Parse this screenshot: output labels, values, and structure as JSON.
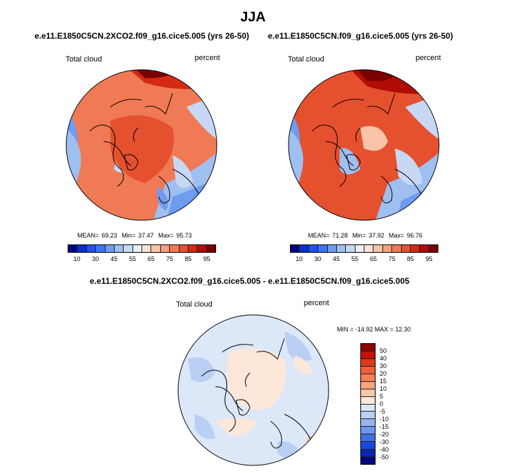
{
  "title": "JJA",
  "variable_label": "Total cloud",
  "units": "percent",
  "maps": [
    {
      "title": "e.e11.E1850C5CN.2XCO2.f09_g16.cice5.005 (yrs 26-50)",
      "mean_label": "MEAN=",
      "mean": "69.23",
      "min_label": "Min=",
      "min": "37.47",
      "max_label": "Max=",
      "max": "95.73"
    },
    {
      "title": "e.e11.E1850C5CN.f09_g16.cice5.005 (yrs 26-50)",
      "mean_label": "MEAN=",
      "mean": "71.28",
      "min_label": "Min=",
      "min": "37.92",
      "max_label": "Max=",
      "max": "96.76"
    }
  ],
  "diff": {
    "title": "e.e11.E1850C5CN.2XCO2.f09_g16.cice5.005 - e.e11.E1850C5CN.f09_g16.cice5.005",
    "minmax": "MIN = -14.92 MAX =  12.30"
  },
  "abs_colorbar": {
    "colors": [
      "#00007f",
      "#0a2ecc",
      "#1c52f0",
      "#3a75f5",
      "#6e9cf2",
      "#9ebff0",
      "#c6d8f4",
      "#e7eff8",
      "#fbe4d6",
      "#f9c4a8",
      "#f6a07e",
      "#f07a55",
      "#e5502f",
      "#d42a14",
      "#b20c05",
      "#7a0000"
    ],
    "ticks": [
      "10",
      "30",
      "45",
      "55",
      "65",
      "75",
      "85",
      "95"
    ]
  },
  "diff_colorbar": {
    "colors": [
      "#8b0000",
      "#c2120b",
      "#dc3a1c",
      "#ef5f3a",
      "#f48058",
      "#f7a37c",
      "#f9c7a8",
      "#fde7d8",
      "#dce8f8",
      "#b9d0f4",
      "#95b6f0",
      "#6c97ec",
      "#3f6fe8",
      "#1a49df",
      "#0b24b8",
      "#00087a"
    ],
    "ticks": [
      "50",
      "40",
      "30",
      "20",
      "15",
      "10",
      "5",
      "0",
      "-5",
      "-10",
      "-15",
      "-20",
      "-30",
      "-40",
      "-50"
    ]
  }
}
